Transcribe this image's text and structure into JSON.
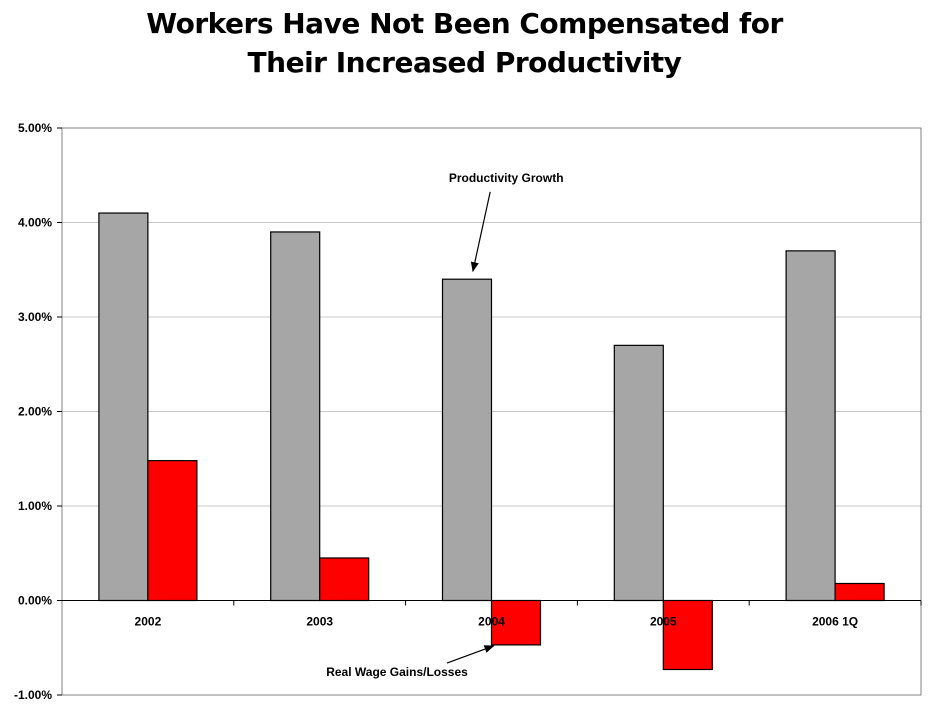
{
  "chart_data": {
    "type": "bar",
    "title_lines": [
      "Workers Have Not Been Compensated for",
      "Their Increased Productivity"
    ],
    "categories": [
      "2002",
      "2003",
      "2004",
      "2005",
      "2006 1Q"
    ],
    "series": [
      {
        "name": "Productivity Growth",
        "values": [
          4.1,
          3.9,
          3.4,
          2.7,
          3.7
        ]
      },
      {
        "name": "Real Wage Gains/Losses",
        "values": [
          1.48,
          0.45,
          -0.47,
          -0.73,
          0.18
        ]
      }
    ],
    "ylim": [
      -1,
      5
    ],
    "yticks": [
      -1,
      0,
      1,
      2,
      3,
      4,
      5
    ],
    "ytick_labels": [
      "-1.00%",
      "0.00%",
      "1.00%",
      "2.00%",
      "3.00%",
      "4.00%",
      "5.00%"
    ],
    "grid": true,
    "annotations": [
      {
        "text": "Productivity Growth",
        "series": 0,
        "category": 2
      },
      {
        "text": "Real Wage Gains/Losses",
        "series": 1,
        "category": 2
      }
    ],
    "colors": {
      "productivity": "#a6a6a6",
      "wages": "#ff0000",
      "grid": "#c8c8c8",
      "frame": "#808080"
    }
  }
}
